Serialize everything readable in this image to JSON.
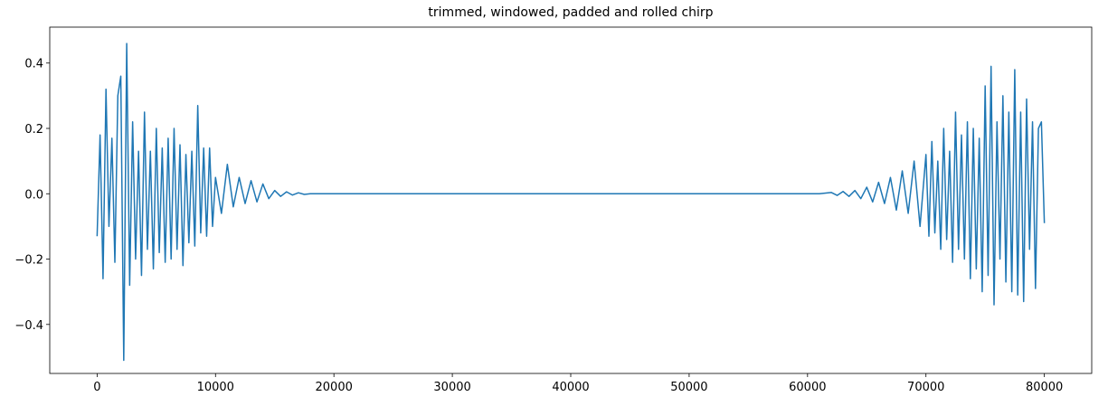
{
  "chart_data": {
    "type": "line",
    "title": "trimmed, windowed, padded and rolled chirp",
    "x": [
      0,
      250,
      500,
      750,
      1000,
      1250,
      1500,
      1750,
      2000,
      2250,
      2500,
      2750,
      3000,
      3250,
      3500,
      3750,
      4000,
      4250,
      4500,
      4750,
      5000,
      5250,
      5500,
      5750,
      6000,
      6250,
      6500,
      6750,
      7000,
      7250,
      7500,
      7750,
      8000,
      8250,
      8500,
      8750,
      9000,
      9250,
      9500,
      9750,
      10000,
      10500,
      11000,
      11500,
      12000,
      12500,
      13000,
      13500,
      14000,
      14500,
      15000,
      15500,
      16000,
      16500,
      17000,
      17500,
      18000,
      61000,
      62000,
      62500,
      63000,
      63500,
      64000,
      64500,
      65000,
      65500,
      66000,
      66500,
      67000,
      67500,
      68000,
      68500,
      69000,
      69500,
      70000,
      70250,
      70500,
      70750,
      71000,
      71250,
      71500,
      71750,
      72000,
      72250,
      72500,
      72750,
      73000,
      73250,
      73500,
      73750,
      74000,
      74250,
      74500,
      74750,
      75000,
      75250,
      75500,
      75750,
      76000,
      76250,
      76500,
      76750,
      77000,
      77250,
      77500,
      77750,
      78000,
      78250,
      78500,
      78750,
      79000,
      79250,
      79500,
      79750,
      80000
    ],
    "series": [
      {
        "color": "#1f77b4",
        "values": [
          -0.13,
          0.18,
          -0.26,
          0.32,
          -0.1,
          0.17,
          -0.21,
          0.3,
          0.36,
          -0.51,
          0.46,
          -0.28,
          0.22,
          -0.2,
          0.13,
          -0.25,
          0.25,
          -0.17,
          0.13,
          -0.23,
          0.2,
          -0.18,
          0.14,
          -0.21,
          0.17,
          -0.2,
          0.2,
          -0.17,
          0.15,
          -0.22,
          0.12,
          -0.15,
          0.13,
          -0.16,
          0.27,
          -0.12,
          0.14,
          -0.13,
          0.14,
          -0.1,
          0.05,
          -0.06,
          0.09,
          -0.04,
          0.05,
          -0.03,
          0.04,
          -0.025,
          0.03,
          -0.015,
          0.01,
          -0.008,
          0.006,
          -0.004,
          0.003,
          -0.002,
          0,
          0,
          0.004,
          -0.005,
          0.007,
          -0.008,
          0.01,
          -0.015,
          0.02,
          -0.025,
          0.035,
          -0.03,
          0.05,
          -0.05,
          0.07,
          -0.06,
          0.1,
          -0.1,
          0.12,
          -0.13,
          0.16,
          -0.12,
          0.1,
          -0.17,
          0.2,
          -0.14,
          0.13,
          -0.21,
          0.25,
          -0.17,
          0.18,
          -0.2,
          0.22,
          -0.26,
          0.2,
          -0.23,
          0.17,
          -0.3,
          0.33,
          -0.25,
          0.39,
          -0.34,
          0.22,
          -0.2,
          0.3,
          -0.27,
          0.25,
          -0.3,
          0.38,
          -0.31,
          0.25,
          -0.33,
          0.29,
          -0.17,
          0.22,
          -0.29,
          0.2,
          0.22,
          -0.09
        ]
      }
    ],
    "xlim": [
      -4000,
      84000
    ],
    "ylim": [
      -0.55,
      0.51
    ],
    "xticks": [
      0,
      10000,
      20000,
      30000,
      40000,
      50000,
      60000,
      70000,
      80000
    ],
    "yticks": [
      {
        "value": -0.4,
        "label": "−0.4"
      },
      {
        "value": -0.2,
        "label": "−0.2"
      },
      {
        "value": 0,
        "label": "0.0"
      },
      0.2,
      0.4
    ]
  }
}
